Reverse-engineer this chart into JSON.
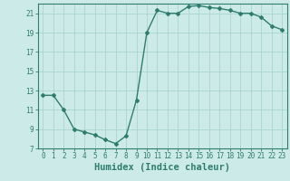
{
  "x": [
    0,
    1,
    2,
    3,
    4,
    5,
    6,
    7,
    8,
    9,
    10,
    11,
    12,
    13,
    14,
    15,
    16,
    17,
    18,
    19,
    20,
    21,
    22,
    23
  ],
  "y": [
    12.5,
    12.5,
    11.0,
    9.0,
    8.7,
    8.4,
    7.9,
    7.5,
    8.3,
    12.0,
    19.0,
    21.3,
    21.0,
    21.0,
    21.7,
    21.8,
    21.6,
    21.5,
    21.3,
    21.0,
    21.0,
    20.6,
    19.7,
    19.3
  ],
  "xlabel": "Humidex (Indice chaleur)",
  "xlim": [
    -0.5,
    23.5
  ],
  "ylim": [
    7,
    22
  ],
  "yticks": [
    7,
    9,
    11,
    13,
    15,
    17,
    19,
    21
  ],
  "xticks": [
    0,
    1,
    2,
    3,
    4,
    5,
    6,
    7,
    8,
    9,
    10,
    11,
    12,
    13,
    14,
    15,
    16,
    17,
    18,
    19,
    20,
    21,
    22,
    23
  ],
  "line_color": "#2e7d6e",
  "marker": "D",
  "marker_size": 2.0,
  "bg_color": "#cceae8",
  "grid_color": "#aad4d0",
  "label_fontsize": 7.5,
  "tick_fontsize": 5.5
}
